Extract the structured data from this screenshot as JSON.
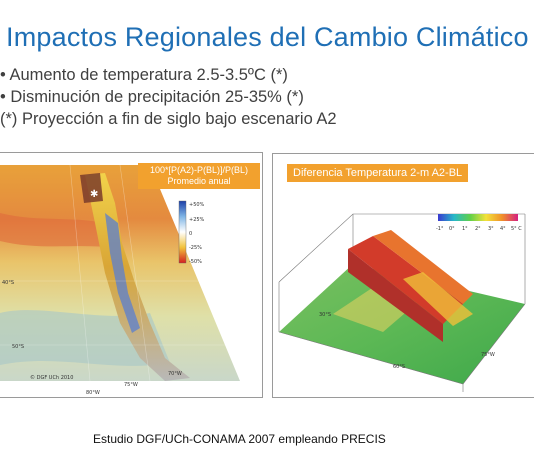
{
  "slide": {
    "title": "Impactos Regionales del Cambio Climático",
    "bullets": [
      "• Aumento de temperatura 2.5-3.5ºC (*)",
      "• Disminución de precipitación 25-35% (*)",
      "(*) Proyección a fin de siglo bajo escenario A2"
    ],
    "footer": "Estudio DGF/UCh-CONAMA 2007 empleando PRECIS"
  },
  "left_map": {
    "label_line1": "100*[P(A2)-P(BL)]/P(BL)",
    "label_line2": "Promedio anual",
    "colorbar_ticks": [
      "+50%",
      "+25%",
      "0",
      "-25%",
      "-50%"
    ],
    "lat_labels": [
      "40°S",
      "50°S"
    ],
    "lon_labels": [
      "80°W",
      "75°W",
      "70°W"
    ],
    "credit": "© DGF UCh 2010"
  },
  "right_map": {
    "label": "Diferencia Temperatura 2-m A2-BL",
    "colorbar_ticks": [
      "-1°",
      "0°",
      "1°",
      "2°",
      "3°",
      "4°",
      "5° C"
    ],
    "lat_labels": [
      "30°S",
      "60°S"
    ],
    "lon_labels": [
      "75°W"
    ]
  },
  "colors": {
    "title": "#1f6fb5",
    "label_bg": "#f2a12e"
  }
}
